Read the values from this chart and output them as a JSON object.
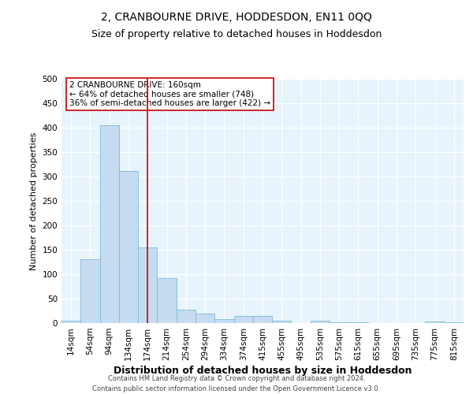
{
  "title": "2, CRANBOURNE DRIVE, HODDESDON, EN11 0QQ",
  "subtitle": "Size of property relative to detached houses in Hoddesdon",
  "xlabel": "Distribution of detached houses by size in Hoddesdon",
  "ylabel": "Number of detached properties",
  "footer_line1": "Contains HM Land Registry data © Crown copyright and database right 2024.",
  "footer_line2": "Contains public sector information licensed under the Open Government Licence v3.0.",
  "categories": [
    "14sqm",
    "54sqm",
    "94sqm",
    "134sqm",
    "174sqm",
    "214sqm",
    "254sqm",
    "294sqm",
    "334sqm",
    "374sqm",
    "415sqm",
    "455sqm",
    "495sqm",
    "535sqm",
    "575sqm",
    "615sqm",
    "655sqm",
    "695sqm",
    "735sqm",
    "775sqm",
    "815sqm"
  ],
  "values": [
    5,
    130,
    405,
    312,
    155,
    92,
    28,
    20,
    8,
    15,
    15,
    5,
    0,
    5,
    1,
    1,
    0,
    0,
    0,
    4,
    2
  ],
  "bar_color": "#C5DCF0",
  "bar_edge_color": "#7DB8D8",
  "red_line_x": 4.0,
  "annotation_text": "2 CRANBOURNE DRIVE: 160sqm\n← 64% of detached houses are smaller (748)\n36% of semi-detached houses are larger (422) →",
  "annotation_box_color": "#ffffff",
  "annotation_box_edge": "#cc0000",
  "ylim": [
    0,
    500
  ],
  "yticks": [
    0,
    50,
    100,
    150,
    200,
    250,
    300,
    350,
    400,
    450,
    500
  ],
  "bg_color": "#E8F4FC",
  "grid_color": "#ffffff",
  "title_fontsize": 10,
  "subtitle_fontsize": 9,
  "xlabel_fontsize": 9,
  "ylabel_fontsize": 8,
  "tick_fontsize": 7.5,
  "annotation_fontsize": 7.5,
  "footer_fontsize": 6
}
